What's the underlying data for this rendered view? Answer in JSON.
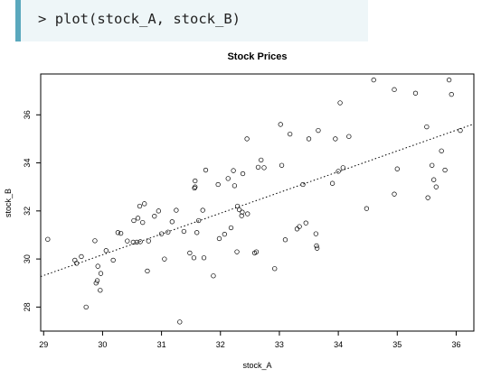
{
  "console": {
    "prompt": ">",
    "command": "plot(stock_A, stock_B)"
  },
  "chart_data": {
    "type": "scatter",
    "title": "Stock Prices",
    "xlabel": "stock_A",
    "ylabel": "stock_B",
    "xlim": [
      28.95,
      36.3
    ],
    "ylim": [
      27.0,
      37.7
    ],
    "xticks": [
      29,
      30,
      31,
      32,
      33,
      34,
      35,
      36
    ],
    "yticks": [
      28,
      30,
      32,
      34,
      36
    ],
    "grid": false,
    "regression_line": {
      "x": [
        28.95,
        36.3
      ],
      "y": [
        29.27,
        35.62
      ],
      "style": "dotted"
    },
    "points": [
      [
        29.07,
        30.82
      ],
      [
        29.53,
        29.95
      ],
      [
        29.56,
        29.82
      ],
      [
        29.64,
        30.1
      ],
      [
        29.72,
        28.0
      ],
      [
        29.87,
        30.76
      ],
      [
        29.89,
        29.0
      ],
      [
        29.91,
        29.1
      ],
      [
        29.92,
        29.7
      ],
      [
        29.96,
        28.7
      ],
      [
        29.97,
        29.4
      ],
      [
        30.06,
        30.35
      ],
      [
        30.18,
        29.95
      ],
      [
        30.26,
        31.1
      ],
      [
        30.31,
        31.07
      ],
      [
        30.42,
        30.75
      ],
      [
        30.52,
        30.7
      ],
      [
        30.53,
        31.6
      ],
      [
        30.58,
        30.7
      ],
      [
        30.6,
        31.7
      ],
      [
        30.63,
        32.2
      ],
      [
        30.64,
        30.72
      ],
      [
        30.68,
        31.52
      ],
      [
        30.71,
        32.3
      ],
      [
        30.76,
        29.5
      ],
      [
        30.78,
        30.75
      ],
      [
        30.88,
        31.78
      ],
      [
        30.95,
        32.0
      ],
      [
        31.0,
        31.05
      ],
      [
        31.05,
        30.0
      ],
      [
        31.11,
        31.12
      ],
      [
        31.18,
        31.55
      ],
      [
        31.25,
        32.03
      ],
      [
        31.31,
        27.38
      ],
      [
        31.38,
        31.15
      ],
      [
        31.48,
        30.25
      ],
      [
        31.55,
        30.05
      ],
      [
        31.56,
        32.95
      ],
      [
        31.57,
        33.25
      ],
      [
        31.57,
        33.0
      ],
      [
        31.6,
        31.1
      ],
      [
        31.63,
        31.6
      ],
      [
        31.7,
        32.03
      ],
      [
        31.72,
        30.05
      ],
      [
        31.75,
        33.7
      ],
      [
        31.88,
        29.3
      ],
      [
        31.96,
        33.1
      ],
      [
        31.98,
        30.85
      ],
      [
        32.07,
        31.03
      ],
      [
        32.13,
        33.35
      ],
      [
        32.18,
        31.3
      ],
      [
        32.22,
        33.68
      ],
      [
        32.24,
        33.05
      ],
      [
        32.28,
        30.3
      ],
      [
        32.29,
        32.2
      ],
      [
        32.32,
        32.05
      ],
      [
        32.36,
        31.8
      ],
      [
        32.37,
        31.95
      ],
      [
        32.38,
        33.55
      ],
      [
        32.45,
        35.0
      ],
      [
        32.46,
        31.88
      ],
      [
        32.58,
        30.25
      ],
      [
        32.61,
        30.3
      ],
      [
        32.64,
        33.82
      ],
      [
        32.69,
        34.12
      ],
      [
        32.74,
        33.8
      ],
      [
        32.92,
        29.6
      ],
      [
        33.02,
        35.6
      ],
      [
        33.04,
        33.9
      ],
      [
        33.1,
        30.8
      ],
      [
        33.18,
        35.2
      ],
      [
        33.3,
        31.25
      ],
      [
        33.34,
        31.35
      ],
      [
        33.4,
        33.1
      ],
      [
        33.45,
        31.5
      ],
      [
        33.5,
        35.0
      ],
      [
        33.62,
        31.05
      ],
      [
        33.63,
        30.55
      ],
      [
        33.64,
        30.45
      ],
      [
        33.66,
        35.35
      ],
      [
        33.9,
        33.15
      ],
      [
        33.95,
        35.0
      ],
      [
        34.0,
        33.65
      ],
      [
        34.03,
        36.5
      ],
      [
        34.08,
        33.8
      ],
      [
        34.18,
        35.1
      ],
      [
        34.48,
        32.1
      ],
      [
        34.6,
        37.45
      ],
      [
        34.95,
        37.05
      ],
      [
        34.95,
        32.7
      ],
      [
        35.0,
        33.75
      ],
      [
        35.31,
        36.9
      ],
      [
        35.5,
        35.5
      ],
      [
        35.52,
        32.55
      ],
      [
        35.59,
        33.9
      ],
      [
        35.62,
        33.3
      ],
      [
        35.66,
        33.0
      ],
      [
        35.75,
        34.5
      ],
      [
        35.81,
        33.7
      ],
      [
        35.88,
        37.45
      ],
      [
        35.92,
        36.85
      ],
      [
        36.07,
        35.35
      ]
    ]
  }
}
